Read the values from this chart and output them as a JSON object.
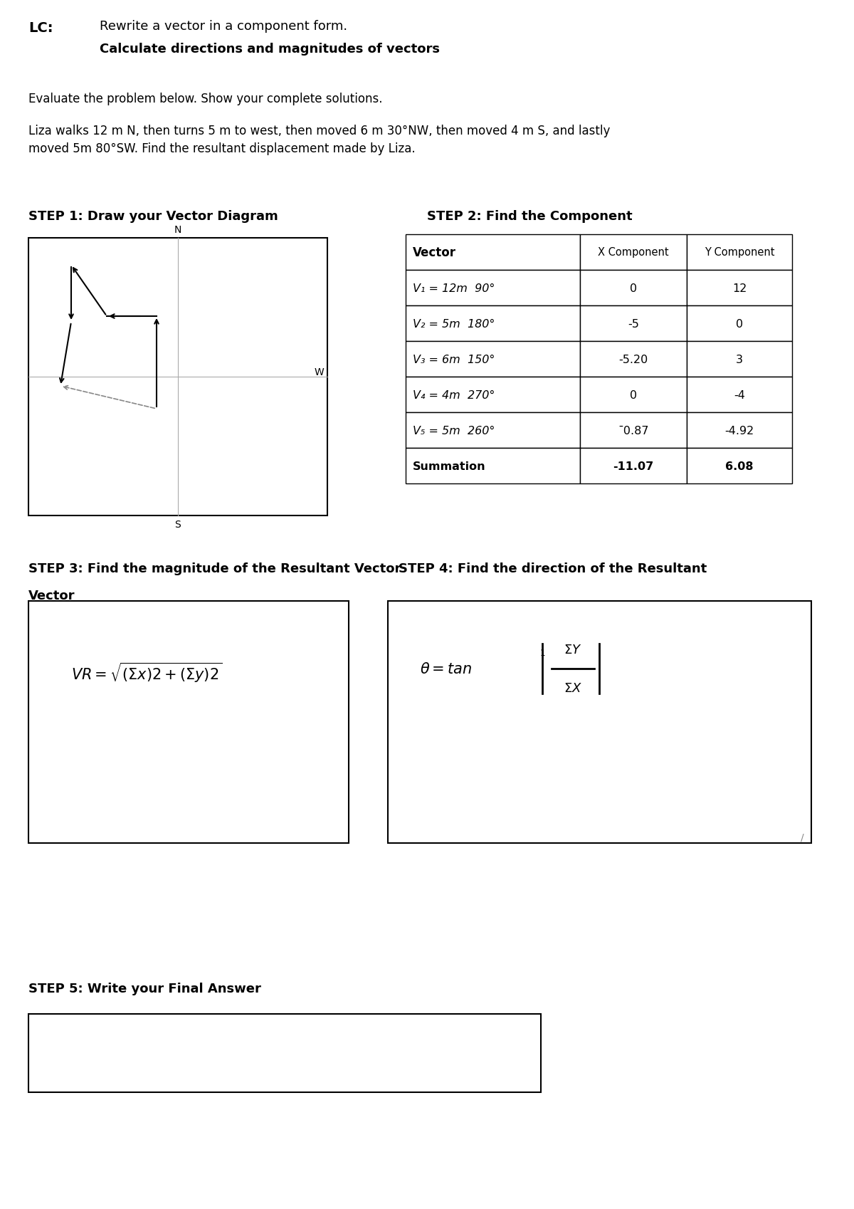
{
  "bg_color": "#ffffff",
  "title_lc": "LC:",
  "title_line1": "Rewrite a vector in a component form.",
  "title_line2": "Calculate directions and magnitudes of vectors",
  "problem_intro": "Evaluate the problem below. Show your complete solutions.",
  "problem_text": "Liza walks 12 m N, then turns 5 m to west, then moved 6 m 30°NW, then moved 4 m S, and lastly\nmoved 5m 80°SW. Find the resultant displacement made by Liza.",
  "step1_label": "STEP 1: Draw your Vector Diagram",
  "step2_label": "STEP 2: Find the Component",
  "step3_label_a": "STEP 3: Find the magnitude of the Resultant Vector",
  "step3_label_b": "Vector",
  "step4_label": "STEP 4: Find the direction of the Resultant",
  "step5_label": "STEP 5: Write your Final Answer",
  "table_headers": [
    "Vector",
    "X Component",
    "Y Component"
  ],
  "table_rows": [
    [
      "V₁ = 12m  90°",
      "0",
      "12"
    ],
    [
      "V₂ = 5m  180°",
      "-5",
      "0"
    ],
    [
      "V₃ = 6m  150°",
      "-5.20",
      "3"
    ],
    [
      "V₄ = 4m  270°",
      "0",
      "-4"
    ],
    [
      "V₅ = 5m  260°",
      "¯0.87",
      "-4.92"
    ],
    [
      "Summation",
      "-11.07",
      "6.08"
    ]
  ]
}
